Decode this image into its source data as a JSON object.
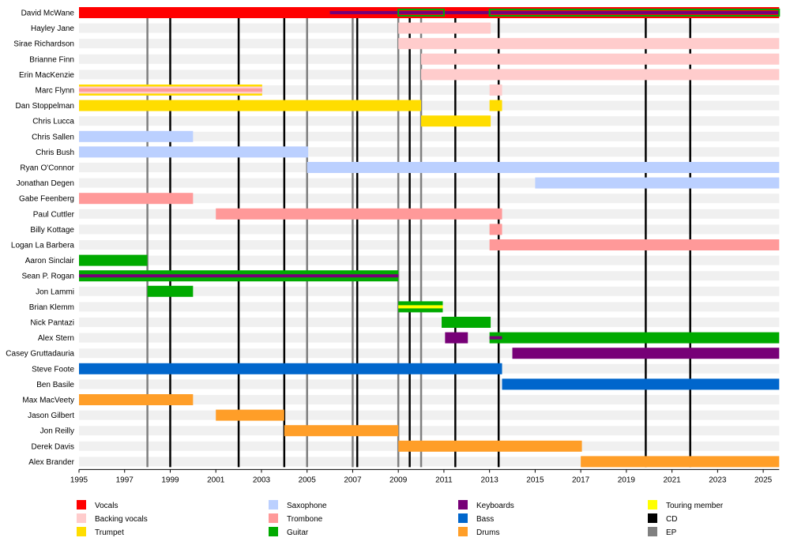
{
  "chart_data": {
    "type": "timeline",
    "xlim": [
      1995,
      2025.7
    ],
    "x_ticks": [
      1995,
      1997,
      1999,
      2001,
      2003,
      2005,
      2007,
      2009,
      2011,
      2013,
      2015,
      2017,
      2019,
      2021,
      2023,
      2025
    ],
    "grid": false,
    "legend_placement": "bottom",
    "roles": [
      {
        "key": "vocals",
        "label": "Vocals",
        "color": "#ff0000"
      },
      {
        "key": "backing",
        "label": "Backing vocals",
        "color": "#ffcccc"
      },
      {
        "key": "trumpet",
        "label": "Trumpet",
        "color": "#ffdd00"
      },
      {
        "key": "sax",
        "label": "Saxophone",
        "color": "#bbd0ff"
      },
      {
        "key": "trombone",
        "label": "Trombone",
        "color": "#ff9999"
      },
      {
        "key": "guitar",
        "label": "Guitar",
        "color": "#00aa00"
      },
      {
        "key": "keyboards",
        "label": "Keyboards",
        "color": "#770077"
      },
      {
        "key": "bass",
        "label": "Bass",
        "color": "#0066cc"
      },
      {
        "key": "drums",
        "label": "Drums",
        "color": "#ff9e28"
      },
      {
        "key": "touring",
        "label": "Touring member",
        "color": "#ffff00"
      },
      {
        "key": "cd",
        "label": "CD",
        "color": "#000000"
      },
      {
        "key": "ep",
        "label": "EP",
        "color": "#808080"
      }
    ],
    "releases_cd": [
      1999,
      2002,
      2004,
      2007.2,
      2009.5,
      2011.5,
      2013.4,
      2019.85,
      2021.8
    ],
    "releases_ep": [
      1998,
      2005,
      2007,
      2009,
      2010
    ],
    "members": [
      {
        "name": "David McWane",
        "bars": [
          {
            "role": "vocals",
            "start": 1995,
            "end": 2025.7
          },
          {
            "role": "keyboards",
            "start": 2006,
            "end": 2025.7,
            "secondary": true
          },
          {
            "role": "guitar",
            "start": 2009,
            "end": 2011,
            "secondary": true,
            "outline": true
          },
          {
            "role": "guitar",
            "start": 2013,
            "end": 2025.7,
            "secondary": true,
            "outline": true
          }
        ]
      },
      {
        "name": "Hayley Jane",
        "bars": [
          {
            "role": "backing",
            "start": 2009,
            "end": 2013.05
          }
        ]
      },
      {
        "name": "Sirae Richardson",
        "bars": [
          {
            "role": "backing",
            "start": 2009,
            "end": 2025.7
          }
        ]
      },
      {
        "name": "Brianne Finn",
        "bars": [
          {
            "role": "backing",
            "start": 2010,
            "end": 2025.7
          }
        ]
      },
      {
        "name": "Erin MacKenzie",
        "bars": [
          {
            "role": "backing",
            "start": 2010,
            "end": 2025.7
          }
        ]
      },
      {
        "name": "Marc Flynn",
        "bars": [
          {
            "role": "trumpet",
            "start": 1995,
            "end": 2003.03
          },
          {
            "role": "backing",
            "start": 1995,
            "end": 2003.03,
            "inner": true
          },
          {
            "role": "trombone",
            "start": 1995,
            "end": 2003.03,
            "secondary": true
          },
          {
            "role": "backing",
            "start": 2013,
            "end": 2013.55
          }
        ]
      },
      {
        "name": "Dan Stoppelman",
        "bars": [
          {
            "role": "trumpet",
            "start": 1995,
            "end": 2010
          },
          {
            "role": "trumpet",
            "start": 2013,
            "end": 2013.55
          }
        ]
      },
      {
        "name": "Chris Lucca",
        "bars": [
          {
            "role": "trumpet",
            "start": 2010,
            "end": 2013.05
          }
        ]
      },
      {
        "name": "Chris Sallen",
        "bars": [
          {
            "role": "sax",
            "start": 1995,
            "end": 2000
          }
        ]
      },
      {
        "name": "Chris Bush",
        "bars": [
          {
            "role": "sax",
            "start": 1995,
            "end": 2005.05
          }
        ]
      },
      {
        "name": "Ryan O'Connor",
        "bars": [
          {
            "role": "sax",
            "start": 2005,
            "end": 2025.7
          }
        ]
      },
      {
        "name": "Jonathan Degen",
        "bars": [
          {
            "role": "sax",
            "start": 2015,
            "end": 2025.7
          }
        ]
      },
      {
        "name": "Gabe Feenberg",
        "bars": [
          {
            "role": "trombone",
            "start": 1995,
            "end": 2000
          }
        ]
      },
      {
        "name": "Paul Cuttler",
        "bars": [
          {
            "role": "trombone",
            "start": 2001,
            "end": 2013.55
          }
        ]
      },
      {
        "name": "Billy Kottage",
        "bars": [
          {
            "role": "trombone",
            "start": 2013,
            "end": 2013.55
          }
        ]
      },
      {
        "name": "Logan La Barbera",
        "bars": [
          {
            "role": "trombone",
            "start": 2013,
            "end": 2025.7
          }
        ]
      },
      {
        "name": "Aaron Sinclair",
        "bars": [
          {
            "role": "guitar",
            "start": 1995,
            "end": 1998
          }
        ]
      },
      {
        "name": "Sean P. Rogan",
        "bars": [
          {
            "role": "guitar",
            "start": 1995,
            "end": 2009
          },
          {
            "role": "keyboards",
            "start": 1995,
            "end": 2009,
            "secondary": true
          }
        ]
      },
      {
        "name": "Jon Lammi",
        "bars": [
          {
            "role": "guitar",
            "start": 1998,
            "end": 2000
          }
        ]
      },
      {
        "name": "Brian Klemm",
        "bars": [
          {
            "role": "guitar",
            "start": 2009,
            "end": 2010.95
          },
          {
            "role": "touring",
            "start": 2009,
            "end": 2010.95,
            "secondary": true
          }
        ]
      },
      {
        "name": "Nick Pantazi",
        "bars": [
          {
            "role": "guitar",
            "start": 2010.9,
            "end": 2013.05
          }
        ]
      },
      {
        "name": "Alex Stern",
        "bars": [
          {
            "role": "keyboards",
            "start": 2011.05,
            "end": 2012.05
          },
          {
            "role": "guitar",
            "start": 2013,
            "end": 2025.7
          },
          {
            "role": "keyboards",
            "start": 2013,
            "end": 2013.55,
            "secondary": true
          }
        ]
      },
      {
        "name": "Casey Gruttadauria",
        "bars": [
          {
            "role": "keyboards",
            "start": 2014,
            "end": 2025.7
          }
        ]
      },
      {
        "name": "Steve Foote",
        "bars": [
          {
            "role": "bass",
            "start": 1995,
            "end": 2013.55
          }
        ]
      },
      {
        "name": "Ben Basile",
        "bars": [
          {
            "role": "bass",
            "start": 2013.55,
            "end": 2025.7
          }
        ]
      },
      {
        "name": "Max MacVeety",
        "bars": [
          {
            "role": "drums",
            "start": 1995,
            "end": 2000
          }
        ]
      },
      {
        "name": "Jason Gilbert",
        "bars": [
          {
            "role": "drums",
            "start": 2001,
            "end": 2004
          }
        ]
      },
      {
        "name": "Jon Reilly",
        "bars": [
          {
            "role": "drums",
            "start": 2004,
            "end": 2009
          }
        ]
      },
      {
        "name": "Derek Davis",
        "bars": [
          {
            "role": "drums",
            "start": 2009,
            "end": 2017.05
          }
        ]
      },
      {
        "name": "Alex Brander",
        "bars": [
          {
            "role": "drums",
            "start": 2017,
            "end": 2025.7
          }
        ]
      }
    ]
  }
}
